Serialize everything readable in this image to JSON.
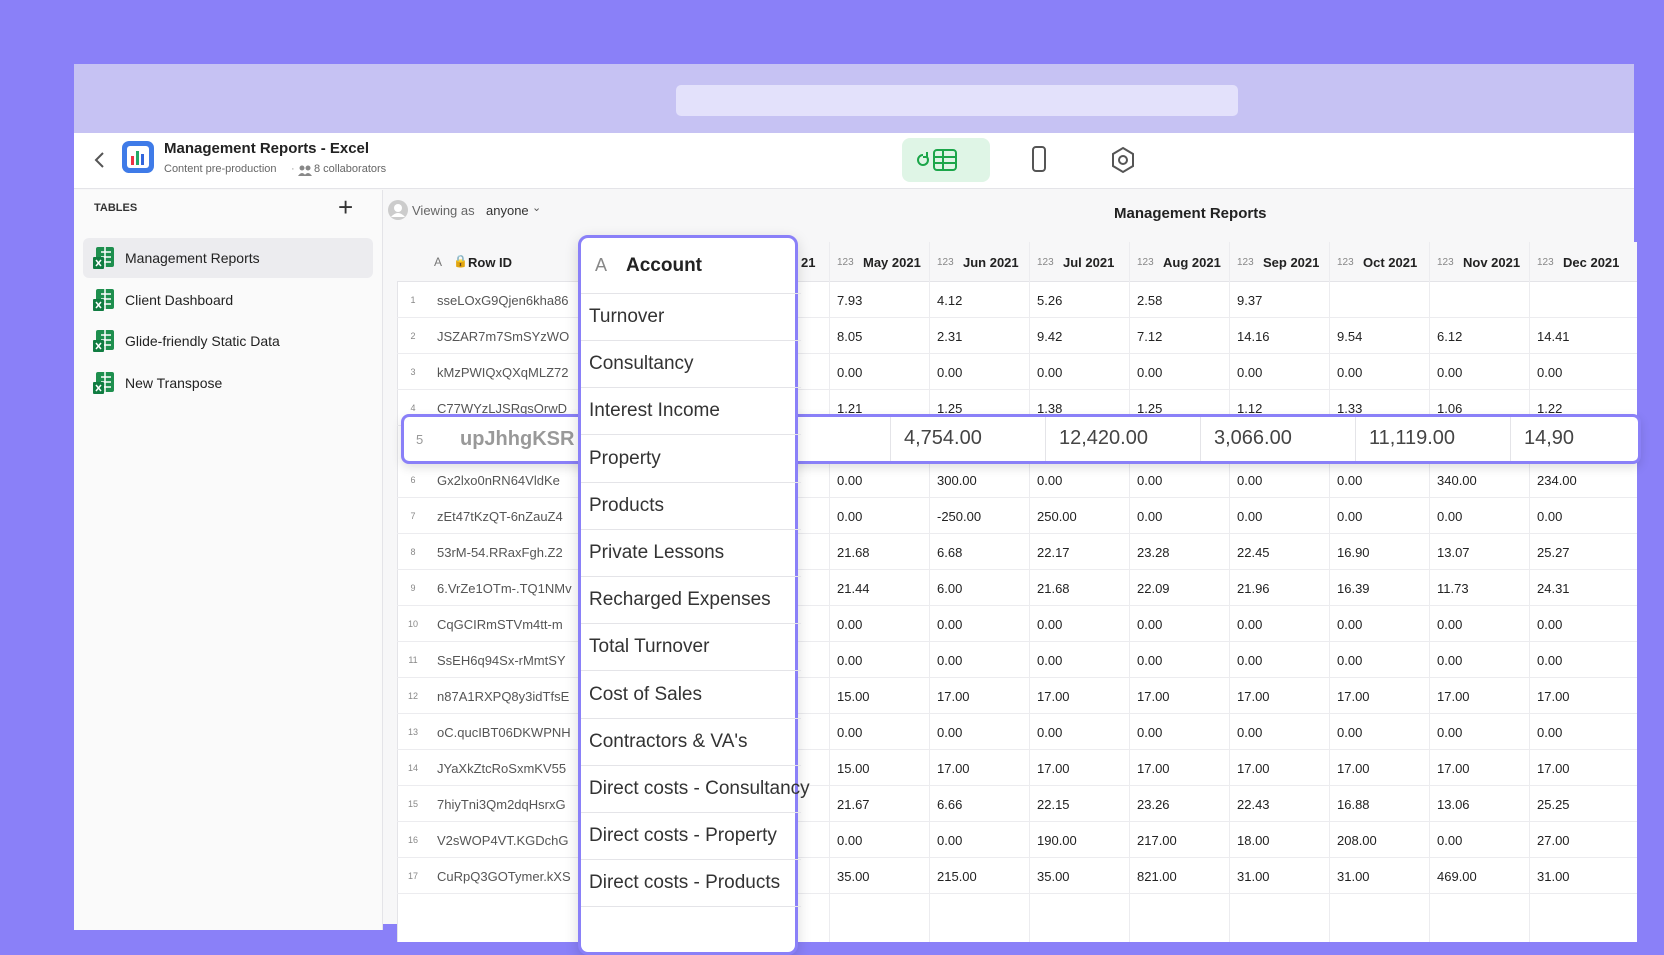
{
  "header": {
    "title": "Management Reports - Excel",
    "subtitle": "Content pre-production",
    "collaborators": "8 collaborators"
  },
  "sidebar": {
    "heading": "TABLES",
    "items": [
      "Management Reports",
      "Client Dashboard",
      "Glide-friendly Static Data",
      "New Transpose"
    ]
  },
  "toolbar": {
    "viewing": "Viewing as",
    "viewer": "anyone",
    "table_title": "Management Reports"
  },
  "table": {
    "text_type": "A",
    "number_type": "123",
    "id_header": "Row ID",
    "partial_header": "21",
    "columns": [
      "May 2021",
      "Jun 2021",
      "Jul 2021",
      "Aug 2021",
      "Sep 2021",
      "Oct 2021",
      "Nov 2021",
      "Dec 2021"
    ],
    "rows": [
      {
        "num": "1",
        "id": "sseLOxG9Qjen6kha86",
        "values": [
          "7.93",
          "4.12",
          "5.26",
          "2.58",
          "9.37",
          null,
          null,
          null
        ]
      },
      {
        "num": "2",
        "id": "JSZAR7m7SmSYzWO",
        "values": [
          "8.05",
          "2.31",
          "9.42",
          "7.12",
          "14.16",
          "9.54",
          "6.12",
          "14.41"
        ]
      },
      {
        "num": "3",
        "id": "kMzPWIQxQXqMLZ72",
        "values": [
          "0.00",
          "0.00",
          "0.00",
          "0.00",
          "0.00",
          "0.00",
          "0.00",
          "0.00"
        ]
      },
      {
        "num": "4",
        "id": "C77WYzLJSRqsOrwD",
        "values": [
          "1.21",
          "1.25",
          "1.38",
          "1.25",
          "1.12",
          "1.33",
          "1.06",
          "1.22"
        ]
      },
      {
        "num": "5",
        "id": "upJhhgKSR",
        "highlight": true,
        "values": [
          "4,754.00",
          "12,420.00",
          "3,066.00",
          "11,119.00",
          "14,90"
        ]
      },
      {
        "num": "6",
        "id": "Gx2lxo0nRN64VldKe",
        "values": [
          "0.00",
          "300.00",
          "0.00",
          "0.00",
          "0.00",
          "0.00",
          "340.00",
          "234.00"
        ]
      },
      {
        "num": "7",
        "id": "zEt47tKzQT-6nZauZ4",
        "values": [
          "0.00",
          "-250.00",
          "250.00",
          "0.00",
          "0.00",
          "0.00",
          "0.00",
          "0.00"
        ]
      },
      {
        "num": "8",
        "id": "53rM-54.RRaxFgh.Z2",
        "values": [
          "21.68",
          "6.68",
          "22.17",
          "23.28",
          "22.45",
          "16.90",
          "13.07",
          "25.27"
        ]
      },
      {
        "num": "9",
        "id": "6.VrZe1OTm-.TQ1NMv",
        "values": [
          "21.44",
          "6.00",
          "21.68",
          "22.09",
          "21.96",
          "16.39",
          "11.73",
          "24.31"
        ]
      },
      {
        "num": "10",
        "id": "CqGCIRmSTVm4tt-m",
        "values": [
          "0.00",
          "0.00",
          "0.00",
          "0.00",
          "0.00",
          "0.00",
          "0.00",
          "0.00"
        ]
      },
      {
        "num": "11",
        "id": "SsEH6q94Sx-rMmtSY",
        "values": [
          "0.00",
          "0.00",
          "0.00",
          "0.00",
          "0.00",
          "0.00",
          "0.00",
          "0.00"
        ]
      },
      {
        "num": "12",
        "id": "n87A1RXPQ8y3idTfsE",
        "values": [
          "15.00",
          "17.00",
          "17.00",
          "17.00",
          "17.00",
          "17.00",
          "17.00",
          "17.00"
        ]
      },
      {
        "num": "13",
        "id": "oC.qucIBT06DKWPNH",
        "values": [
          "0.00",
          "0.00",
          "0.00",
          "0.00",
          "0.00",
          "0.00",
          "0.00",
          "0.00"
        ]
      },
      {
        "num": "14",
        "id": "JYaXkZtcRoSxmKV55",
        "values": [
          "15.00",
          "17.00",
          "17.00",
          "17.00",
          "17.00",
          "17.00",
          "17.00",
          "17.00"
        ]
      },
      {
        "num": "15",
        "id": "7hiyTni3Qm2dqHsrxG",
        "values": [
          "21.67",
          "6.66",
          "22.15",
          "23.26",
          "22.43",
          "16.88",
          "13.06",
          "25.25"
        ]
      },
      {
        "num": "16",
        "id": "V2sWOP4VT.KGDchG",
        "values": [
          "0.00",
          "0.00",
          "190.00",
          "217.00",
          "18.00",
          "208.00",
          "0.00",
          "27.00"
        ]
      },
      {
        "num": "17",
        "id": "CuRpQ3GOTymer.kXS",
        "values": [
          "35.00",
          "215.00",
          "35.00",
          "821.00",
          "31.00",
          "31.00",
          "469.00",
          "31.00"
        ]
      }
    ]
  },
  "account": {
    "type": "A",
    "header": "Account",
    "items": [
      "Turnover",
      "Consultancy",
      "Interest Income",
      "Property",
      "Products",
      "Private Lessons",
      "Recharged Expenses",
      "Total Turnover",
      "Cost of Sales",
      "Contractors & VA's",
      "Direct costs - Consultancy",
      "Direct costs - Property",
      "Direct costs - Products"
    ]
  }
}
